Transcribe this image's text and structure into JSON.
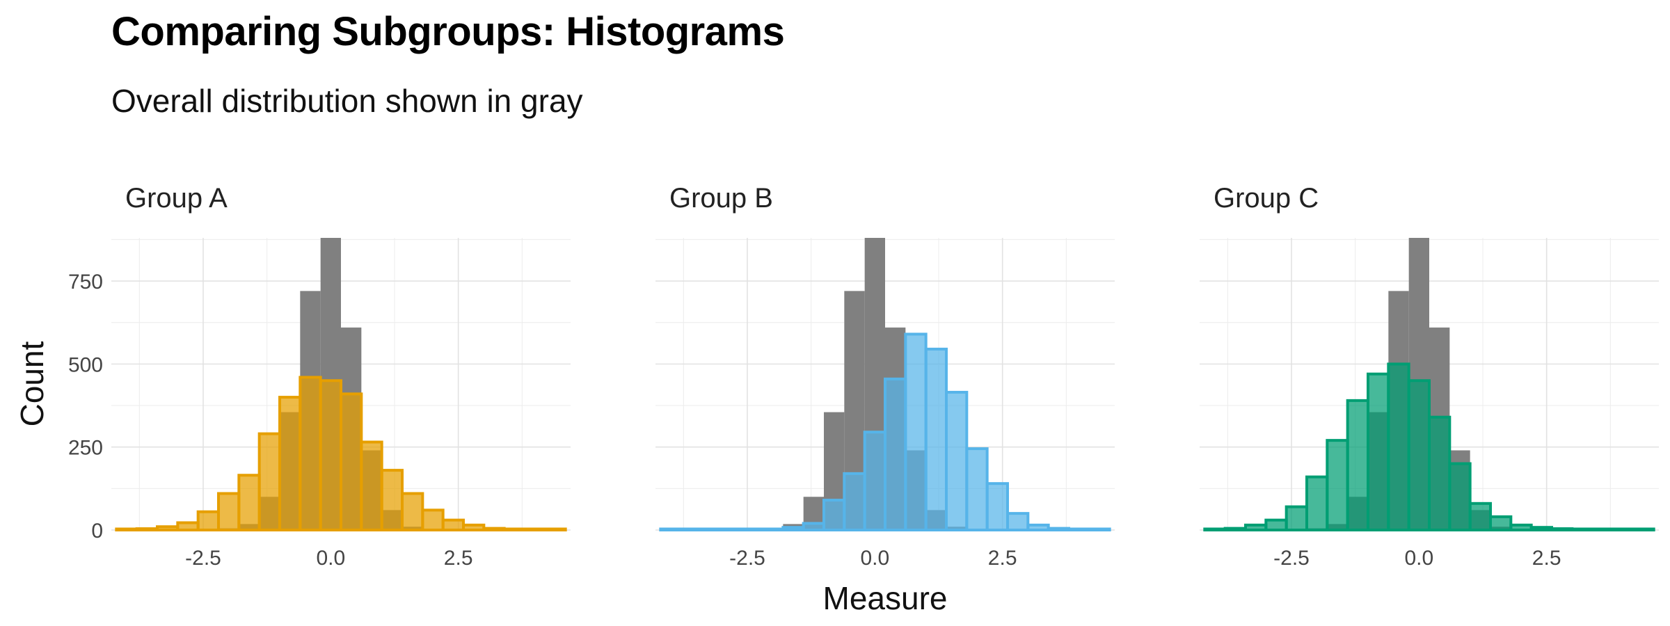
{
  "title": "Comparing Subgroups: Histograms",
  "subtitle": "Overall distribution shown in gray",
  "colors": {
    "overall": "#808080",
    "A": "#E69F00",
    "B": "#56B4E9",
    "C": "#009E73",
    "grid": "#ececec"
  },
  "chart_data": {
    "type": "bar",
    "xlabel": "Measure",
    "ylabel": "Count",
    "xlim": [
      -4.3,
      4.7
    ],
    "ylim": [
      0,
      880
    ],
    "x_ticks": [
      -2.5,
      0.0,
      2.5
    ],
    "x_tick_labels": [
      "-2.5",
      "0.0",
      "2.5"
    ],
    "y_ticks": [
      0,
      250,
      500,
      750
    ],
    "y_tick_labels": [
      "0",
      "250",
      "500",
      "750"
    ],
    "grid": true,
    "bin_width": 0.4,
    "bins": [
      -4.0,
      -3.6,
      -3.2,
      -2.8,
      -2.4,
      -2.0,
      -1.6,
      -1.2,
      -0.8,
      -0.4,
      0.0,
      0.4,
      0.8,
      1.2,
      1.6,
      2.0,
      2.4,
      2.8,
      3.2,
      3.6,
      4.0,
      4.4
    ],
    "overall": {
      "name": "Overall",
      "values": [
        0,
        0,
        0,
        0,
        2,
        5,
        18,
        100,
        355,
        720,
        880,
        610,
        240,
        60,
        10,
        2,
        0,
        0,
        0,
        0,
        0,
        0
      ]
    },
    "panels": [
      {
        "name": "Group A",
        "color_key": "A",
        "values": [
          2,
          4,
          10,
          22,
          55,
          110,
          165,
          290,
          400,
          460,
          450,
          410,
          265,
          180,
          110,
          60,
          30,
          15,
          5,
          3,
          1,
          1
        ]
      },
      {
        "name": "Group B",
        "color_key": "B",
        "values": [
          0,
          0,
          0,
          0,
          1,
          3,
          8,
          20,
          90,
          170,
          295,
          455,
          590,
          545,
          415,
          245,
          140,
          50,
          15,
          5,
          2,
          1
        ]
      },
      {
        "name": "Group C",
        "color_key": "C",
        "values": [
          2,
          5,
          15,
          30,
          70,
          160,
          270,
          390,
          470,
          500,
          450,
          340,
          200,
          80,
          40,
          15,
          8,
          4,
          2,
          1,
          0,
          0
        ]
      }
    ]
  }
}
